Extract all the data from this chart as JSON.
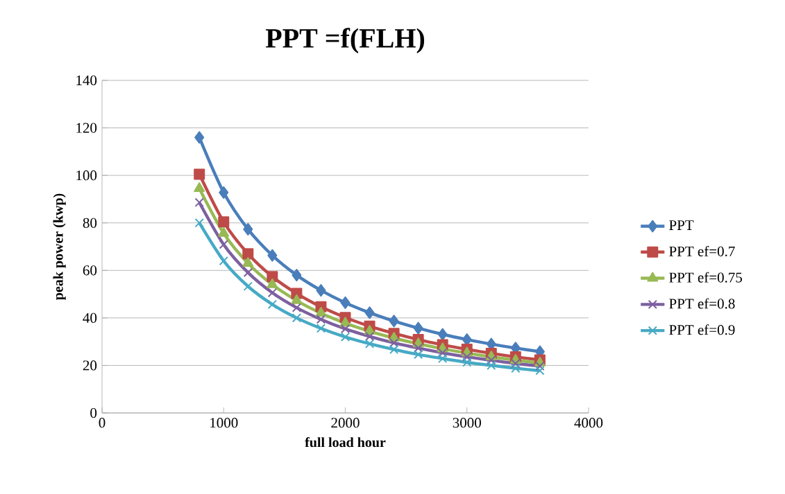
{
  "chart_data": {
    "type": "line",
    "title": "PPT =f(FLH)",
    "xlabel": "full load hour",
    "ylabel": "peak power (kwp)",
    "x": [
      800,
      1000,
      1200,
      1400,
      1600,
      1800,
      2000,
      2200,
      2400,
      2600,
      2800,
      3000,
      3200,
      3400,
      3600
    ],
    "series": [
      {
        "name": "PPT",
        "color": "#4a7ebb",
        "marker": "diamond",
        "values": [
          116,
          92.8,
          77.3,
          66.3,
          58,
          51.6,
          46.4,
          42.2,
          38.7,
          35.7,
          33.1,
          30.9,
          29,
          27.3,
          25.8
        ]
      },
      {
        "name": "PPT ef=0.7",
        "color": "#be4b48",
        "marker": "square",
        "values": [
          100.5,
          80.4,
          67,
          57.4,
          50.3,
          44.7,
          40.2,
          36.5,
          33.5,
          30.9,
          28.7,
          26.8,
          25.1,
          23.6,
          22.3
        ]
      },
      {
        "name": "PPT ef=0.75",
        "color": "#98b954",
        "marker": "triangle",
        "values": [
          94.5,
          75.6,
          63,
          54,
          47.3,
          42,
          37.8,
          34.4,
          31.5,
          29.1,
          27,
          25.2,
          23.6,
          22.2,
          21
        ]
      },
      {
        "name": "PPT ef=0.8",
        "color": "#7d60a0",
        "marker": "cross",
        "values": [
          88.6,
          70.9,
          59.1,
          50.6,
          44.3,
          39.4,
          35.4,
          32.2,
          29.5,
          27.3,
          25.3,
          23.6,
          22.2,
          20.8,
          19.7
        ]
      },
      {
        "name": "PPT ef=0.9",
        "color": "#46aac5",
        "marker": "cross",
        "values": [
          80,
          64,
          53.3,
          45.7,
          40,
          35.6,
          32,
          29.1,
          26.7,
          24.6,
          22.9,
          21.3,
          20,
          18.8,
          17.8
        ]
      }
    ],
    "xlim": [
      0,
      4000
    ],
    "xticks": [
      0,
      1000,
      2000,
      3000,
      4000
    ],
    "ylim": [
      0,
      140
    ],
    "yticks": [
      0,
      20,
      40,
      60,
      80,
      100,
      120,
      140
    ],
    "grid": "y",
    "legend": "right",
    "line_style": "solid"
  }
}
